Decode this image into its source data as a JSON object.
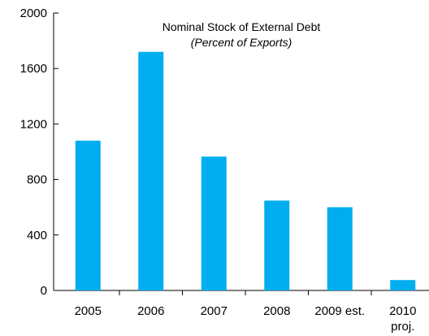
{
  "chart_data": {
    "type": "bar",
    "title": "Nominal Stock of External Debt",
    "subtitle": "(Percent of Exports)",
    "categories": [
      "2005",
      "2006",
      "2007",
      "2008",
      "2009 est.",
      "2010 proj."
    ],
    "category_lines": [
      [
        "2005"
      ],
      [
        "2006"
      ],
      [
        "2007"
      ],
      [
        "2008"
      ],
      [
        "2009 est."
      ],
      [
        "2010",
        "proj."
      ]
    ],
    "values": [
      1080,
      1720,
      965,
      648,
      600,
      75
    ],
    "ylim": [
      0,
      2000
    ],
    "yticks": [
      0,
      400,
      800,
      1200,
      1600,
      2000
    ],
    "xlabel": "",
    "ylabel": "",
    "bar_color": "#00AEEF",
    "grid": false
  }
}
